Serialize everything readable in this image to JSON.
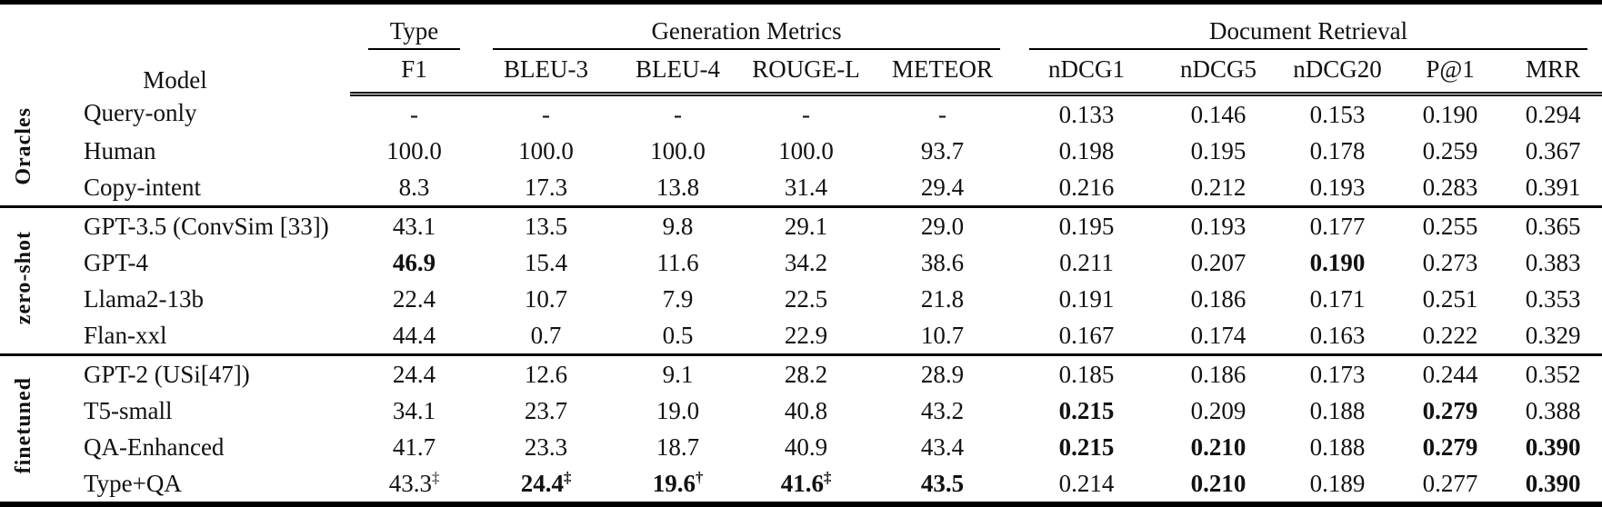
{
  "header": {
    "model": "Model",
    "groups": [
      {
        "label": "Type",
        "subs": [
          "F1"
        ]
      },
      {
        "label": "Generation Metrics",
        "subs": [
          "BLEU-3",
          "BLEU-4",
          "ROUGE-L",
          "METEOR"
        ]
      },
      {
        "label": "Document Retrieval",
        "subs": [
          "nDCG1",
          "nDCG5",
          "nDCG20",
          "P@1",
          "MRR"
        ]
      }
    ]
  },
  "sections": [
    {
      "label": "Oracles",
      "rows": [
        {
          "model": "Query-only",
          "cells": [
            {
              "v": "-"
            },
            {
              "v": "-"
            },
            {
              "v": "-"
            },
            {
              "v": "-"
            },
            {
              "v": "-"
            },
            {
              "v": "0.133"
            },
            {
              "v": "0.146"
            },
            {
              "v": "0.153"
            },
            {
              "v": "0.190"
            },
            {
              "v": "0.294"
            }
          ]
        },
        {
          "model": "Human",
          "cells": [
            {
              "v": "100.0"
            },
            {
              "v": "100.0"
            },
            {
              "v": "100.0"
            },
            {
              "v": "100.0"
            },
            {
              "v": "93.7"
            },
            {
              "v": "0.198"
            },
            {
              "v": "0.195"
            },
            {
              "v": "0.178"
            },
            {
              "v": "0.259"
            },
            {
              "v": "0.367"
            }
          ]
        },
        {
          "model": "Copy-intent",
          "cells": [
            {
              "v": "8.3"
            },
            {
              "v": "17.3"
            },
            {
              "v": "13.8"
            },
            {
              "v": "31.4"
            },
            {
              "v": "29.4"
            },
            {
              "v": "0.216"
            },
            {
              "v": "0.212"
            },
            {
              "v": "0.193"
            },
            {
              "v": "0.283"
            },
            {
              "v": "0.391"
            }
          ]
        }
      ]
    },
    {
      "label": "zero-shot",
      "rows": [
        {
          "model": "GPT-3.5 (ConvSim [33])",
          "cells": [
            {
              "v": "43.1"
            },
            {
              "v": "13.5"
            },
            {
              "v": "9.8"
            },
            {
              "v": "29.1"
            },
            {
              "v": "29.0"
            },
            {
              "v": "0.195"
            },
            {
              "v": "0.193"
            },
            {
              "v": "0.177"
            },
            {
              "v": "0.255"
            },
            {
              "v": "0.365"
            }
          ]
        },
        {
          "model": "GPT-4",
          "cells": [
            {
              "v": "46.9",
              "b": true
            },
            {
              "v": "15.4"
            },
            {
              "v": "11.6"
            },
            {
              "v": "34.2"
            },
            {
              "v": "38.6"
            },
            {
              "v": "0.211"
            },
            {
              "v": "0.207"
            },
            {
              "v": "0.190",
              "b": true
            },
            {
              "v": "0.273"
            },
            {
              "v": "0.383"
            }
          ]
        },
        {
          "model": "Llama2-13b",
          "cells": [
            {
              "v": "22.4"
            },
            {
              "v": "10.7"
            },
            {
              "v": "7.9"
            },
            {
              "v": "22.5"
            },
            {
              "v": "21.8"
            },
            {
              "v": "0.191"
            },
            {
              "v": "0.186"
            },
            {
              "v": "0.171"
            },
            {
              "v": "0.251"
            },
            {
              "v": "0.353"
            }
          ]
        },
        {
          "model": "Flan-xxl",
          "cells": [
            {
              "v": "44.4"
            },
            {
              "v": "0.7"
            },
            {
              "v": "0.5"
            },
            {
              "v": "22.9"
            },
            {
              "v": "10.7"
            },
            {
              "v": "0.167"
            },
            {
              "v": "0.174"
            },
            {
              "v": "0.163"
            },
            {
              "v": "0.222"
            },
            {
              "v": "0.329"
            }
          ]
        }
      ]
    },
    {
      "label": "finetuned",
      "rows": [
        {
          "model": "GPT-2 (USi[47])",
          "cells": [
            {
              "v": "24.4"
            },
            {
              "v": "12.6"
            },
            {
              "v": "9.1"
            },
            {
              "v": "28.2"
            },
            {
              "v": "28.9"
            },
            {
              "v": "0.185"
            },
            {
              "v": "0.186"
            },
            {
              "v": "0.173"
            },
            {
              "v": "0.244"
            },
            {
              "v": "0.352"
            }
          ]
        },
        {
          "model": "T5-small",
          "cells": [
            {
              "v": "34.1"
            },
            {
              "v": "23.7"
            },
            {
              "v": "19.0"
            },
            {
              "v": "40.8"
            },
            {
              "v": "43.2"
            },
            {
              "v": "0.215",
              "b": true
            },
            {
              "v": "0.209"
            },
            {
              "v": "0.188"
            },
            {
              "v": "0.279",
              "b": true
            },
            {
              "v": "0.388"
            }
          ]
        },
        {
          "model": "QA-Enhanced",
          "cells": [
            {
              "v": "41.7"
            },
            {
              "v": "23.3"
            },
            {
              "v": "18.7"
            },
            {
              "v": "40.9"
            },
            {
              "v": "43.4"
            },
            {
              "v": "0.215",
              "b": true
            },
            {
              "v": "0.210",
              "b": true
            },
            {
              "v": "0.188"
            },
            {
              "v": "0.279",
              "b": true
            },
            {
              "v": "0.390",
              "b": true
            }
          ]
        },
        {
          "model": "Type+QA",
          "cells": [
            {
              "v": "43.3",
              "sup": "‡"
            },
            {
              "v": "24.4",
              "sup": "‡",
              "b": true
            },
            {
              "v": "19.6",
              "sup": "†",
              "b": true
            },
            {
              "v": "41.6",
              "sup": "‡",
              "b": true
            },
            {
              "v": "43.5",
              "b": true
            },
            {
              "v": "0.214"
            },
            {
              "v": "0.210",
              "b": true
            },
            {
              "v": "0.189"
            },
            {
              "v": "0.277"
            },
            {
              "v": "0.390",
              "b": true
            }
          ]
        }
      ]
    }
  ]
}
